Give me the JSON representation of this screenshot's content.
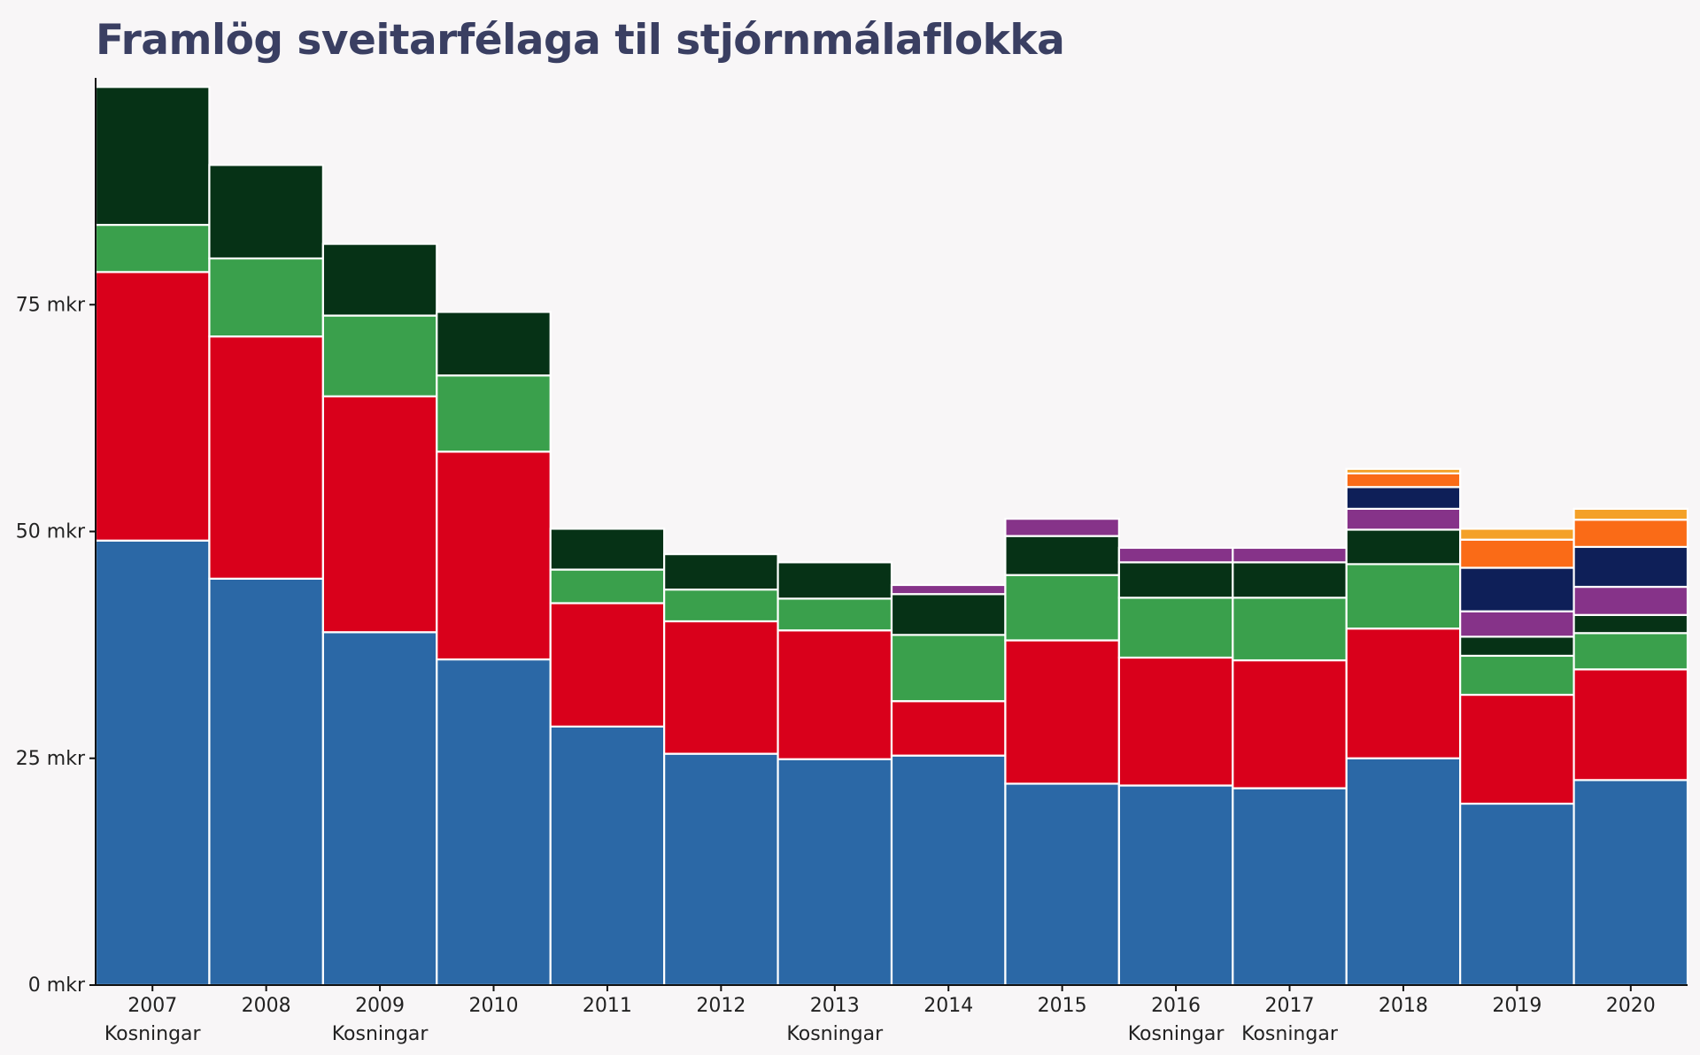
{
  "chart_data": {
    "type": "bar",
    "stacked": true,
    "title": "Framlög sveitarfélaga til stjórnmálaflokka",
    "xlabel": "",
    "ylabel": "",
    "ylim": [
      0,
      100
    ],
    "y_ticks": [
      0,
      25,
      50,
      75
    ],
    "y_tick_labels": [
      "0 mkr",
      "25 mkr",
      "50 mkr",
      "75 mkr"
    ],
    "categories": [
      "2007",
      "2008",
      "2009",
      "2010",
      "2011",
      "2012",
      "2013",
      "2014",
      "2015",
      "2016",
      "2017",
      "2018",
      "2019",
      "2020"
    ],
    "category_notes": [
      "Kosningar",
      "",
      "Kosningar",
      "",
      "",
      "",
      "Kosningar",
      "",
      "",
      "Kosningar",
      "Kosningar",
      "",
      "",
      ""
    ],
    "grid": false,
    "legend": "none",
    "series": [
      {
        "color": "#2b68a6",
        "values": [
          49.0,
          44.8,
          38.9,
          35.9,
          28.5,
          25.5,
          24.9,
          25.3,
          22.2,
          22.0,
          21.7,
          25.0,
          20.0,
          22.6
        ]
      },
      {
        "color": "#d9001b",
        "values": [
          29.6,
          26.7,
          26.0,
          22.9,
          13.6,
          14.6,
          14.2,
          6.0,
          15.8,
          14.1,
          14.1,
          14.3,
          12.0,
          12.2
        ]
      },
      {
        "color": "#3aa04c",
        "values": [
          5.2,
          8.6,
          8.9,
          8.4,
          3.7,
          3.5,
          3.5,
          7.3,
          7.2,
          6.6,
          6.9,
          7.1,
          4.3,
          4.0
        ]
      },
      {
        "color": "#063216",
        "values": [
          15.2,
          10.3,
          7.9,
          7.0,
          4.5,
          3.9,
          4.0,
          4.5,
          4.3,
          3.9,
          3.9,
          3.8,
          2.1,
          2.0
        ]
      },
      {
        "color": "#863389",
        "values": [
          0,
          0,
          0,
          0,
          0,
          0,
          0,
          1.0,
          1.9,
          1.6,
          1.6,
          2.3,
          2.8,
          3.1
        ]
      },
      {
        "color": "#0e1f58",
        "values": [
          0,
          0,
          0,
          0,
          0,
          0,
          0,
          0,
          0,
          0,
          0,
          2.4,
          4.8,
          4.4
        ]
      },
      {
        "color": "#fa6b17",
        "values": [
          0,
          0,
          0,
          0,
          0,
          0,
          0,
          0,
          0,
          0,
          0,
          1.5,
          3.1,
          3.0
        ]
      },
      {
        "color": "#f4a128",
        "values": [
          0,
          0,
          0,
          0,
          0,
          0,
          0,
          0,
          0,
          0,
          0,
          0.5,
          1.2,
          1.2
        ]
      }
    ]
  }
}
